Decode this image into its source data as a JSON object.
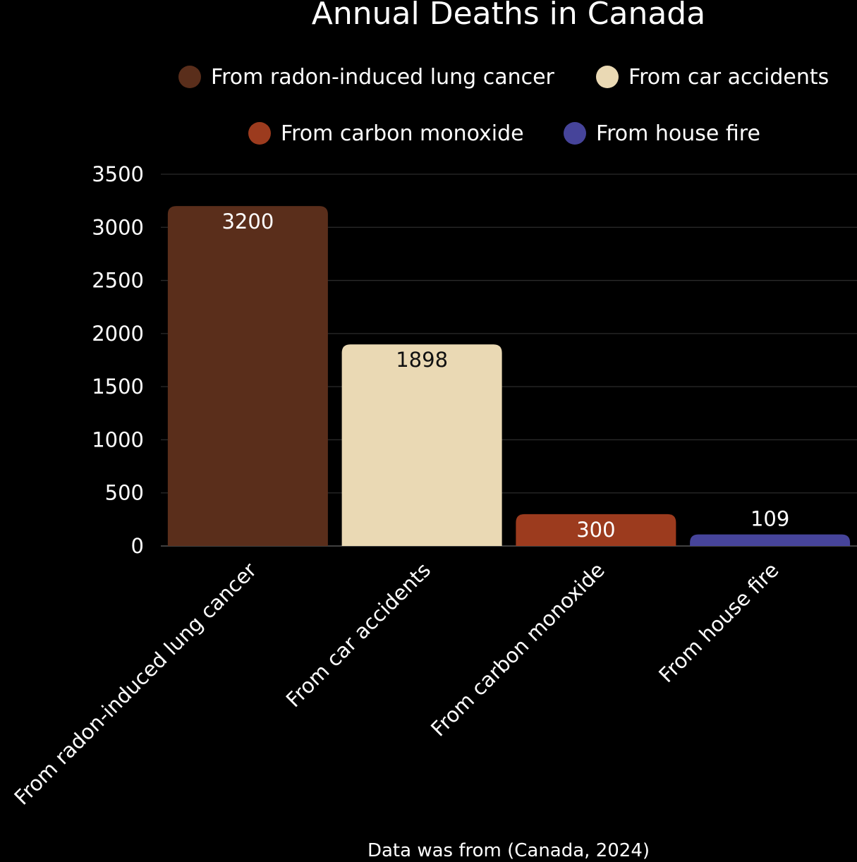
{
  "chart_data": {
    "type": "bar",
    "title": "Annual Deaths in Canada",
    "categories": [
      "From radon-induced lung cancer",
      "From car accidents",
      "From carbon monoxide",
      "From house fire"
    ],
    "values": [
      3200,
      1898,
      300,
      109
    ],
    "colors": [
      "#5a2e1b",
      "#ead9b4",
      "#9c3b1e",
      "#46449a"
    ],
    "data_label_colors": [
      "#ffffff",
      "#111111",
      "#ffffff",
      "#ffffff"
    ],
    "legend": {
      "position": "top",
      "entries": [
        "From radon-induced lung cancer",
        "From car accidents",
        "From carbon monoxide",
        "From house fire"
      ]
    },
    "ylim": [
      0,
      3500
    ],
    "yticks": [
      "0",
      "500",
      "1000",
      "1500",
      "2000",
      "2500",
      "3000",
      "3500"
    ],
    "ytick_values": [
      0,
      500,
      1000,
      1500,
      2000,
      2500,
      3000,
      3500
    ],
    "grid": true,
    "xlabel": "",
    "ylabel": "",
    "background": "#000000",
    "source_note": "Data was from (Canada, 2024)"
  }
}
